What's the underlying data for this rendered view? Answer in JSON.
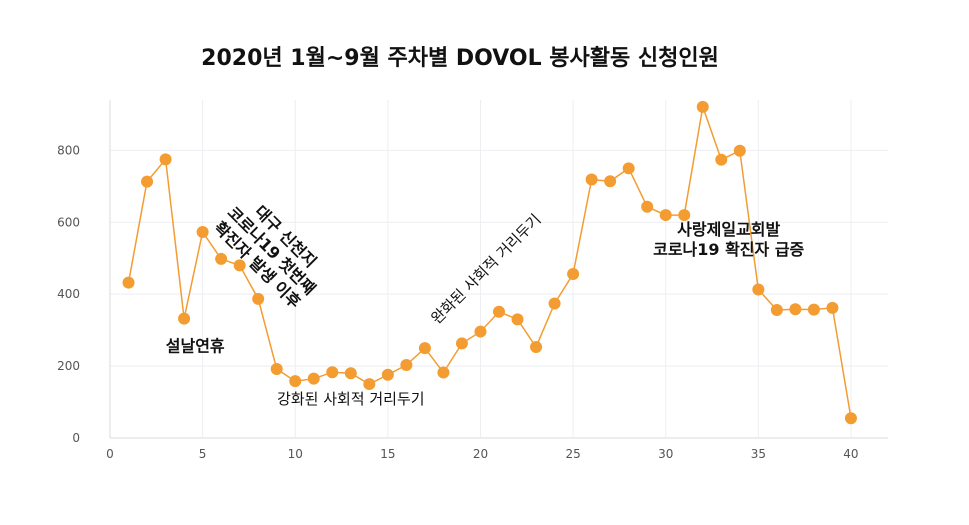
{
  "chart_data": {
    "type": "line",
    "title": "2020년 1월~9월 주차별 DOVOL 봉사활동 신청인원",
    "xlabel": "",
    "ylabel": "",
    "xlim": [
      0,
      42
    ],
    "ylim": [
      0,
      940
    ],
    "x_ticks": [
      "0",
      "5",
      "10",
      "15",
      "20",
      "25",
      "30",
      "35",
      "40"
    ],
    "y_ticks": [
      "0",
      "200",
      "400",
      "600",
      "800"
    ],
    "grid": true,
    "line_color": "#f39c32",
    "x": [
      1,
      2,
      3,
      4,
      5,
      6,
      7,
      8,
      9,
      10,
      11,
      12,
      13,
      14,
      15,
      16,
      17,
      18,
      19,
      20,
      21,
      22,
      23,
      24,
      25,
      26,
      27,
      28,
      29,
      30,
      31,
      32,
      33,
      34,
      35,
      36,
      37,
      38,
      39,
      40
    ],
    "values": [
      432,
      713,
      775,
      332,
      573,
      498,
      480,
      387,
      192,
      158,
      165,
      183,
      180,
      150,
      176,
      203,
      250,
      182,
      263,
      296,
      351,
      330,
      253,
      374,
      456,
      719,
      714,
      750,
      643,
      620,
      620,
      921,
      774,
      799,
      413,
      356,
      358,
      357,
      362,
      55
    ],
    "annotations": [
      {
        "id": "a1",
        "lines": [
          "설날연휴"
        ],
        "x": 4.6,
        "y": 255,
        "angle": 0,
        "bold": true
      },
      {
        "id": "a2",
        "lines": [
          "대구 신천지",
          "코로나19 첫번째",
          "확진자 발생 이후"
        ],
        "x": 8.7,
        "y": 520,
        "angle": 45,
        "bold": true
      },
      {
        "id": "a3",
        "lines": [
          "강화된 사회적 거리두기"
        ],
        "x": 13.0,
        "y": 108,
        "angle": 0,
        "bold": false
      },
      {
        "id": "a4",
        "lines": [
          "완화된 사회적 거리두기"
        ],
        "x": 20.3,
        "y": 470,
        "angle": -45,
        "bold": false
      },
      {
        "id": "a5",
        "lines": [
          "사랑제일교회발",
          "코로나19 확진자 급증"
        ],
        "x": 33.4,
        "y": 550,
        "angle": 0,
        "bold": true
      }
    ]
  }
}
